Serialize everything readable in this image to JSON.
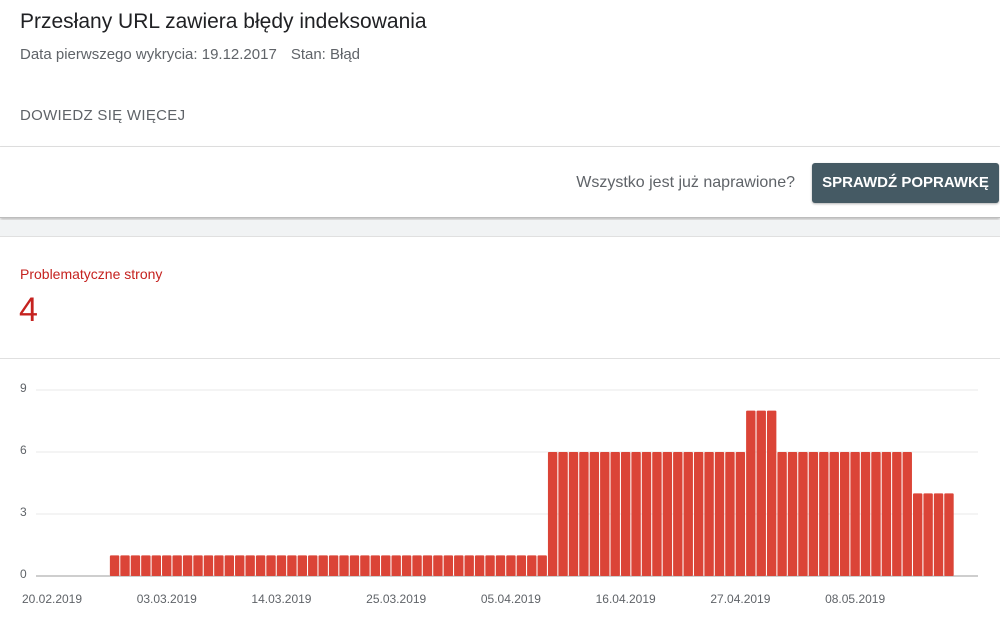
{
  "header": {
    "title": "Przesłany URL zawiera błędy indeksowania",
    "first_detected": "Data pierwszego wykrycia: 19.12.2017",
    "status": "Stan: Błąd",
    "learn_more": "DOWIEDZ SIĘ WIĘCEJ"
  },
  "fix_bar": {
    "question": "Wszystko jest już naprawione?",
    "button": "SPRAWDŹ POPRAWKĘ"
  },
  "summary": {
    "label": "Problematyczne strony",
    "count": "4"
  },
  "chart_data": {
    "type": "bar",
    "color": "#db4437",
    "grid": true,
    "categories": [
      "20.02.2019",
      null,
      null,
      null,
      null,
      null,
      null,
      null,
      null,
      null,
      null,
      "03.03.2019",
      null,
      null,
      null,
      null,
      null,
      null,
      null,
      null,
      null,
      null,
      "14.03.2019",
      null,
      null,
      null,
      null,
      null,
      null,
      null,
      null,
      null,
      null,
      "25.03.2019",
      null,
      null,
      null,
      null,
      null,
      null,
      null,
      null,
      null,
      null,
      "05.04.2019",
      null,
      null,
      null,
      null,
      null,
      null,
      null,
      null,
      null,
      null,
      "16.04.2019",
      null,
      null,
      null,
      null,
      null,
      null,
      null,
      null,
      null,
      null,
      "27.04.2019",
      null,
      null,
      null,
      null,
      null,
      null,
      null,
      null,
      null,
      null,
      "08.05.2019",
      null,
      null,
      null,
      null,
      null,
      null,
      null,
      null,
      null
    ],
    "values": [
      null,
      null,
      null,
      null,
      null,
      null,
      1,
      1,
      1,
      1,
      1,
      1,
      1,
      1,
      1,
      1,
      1,
      1,
      1,
      1,
      1,
      1,
      1,
      1,
      1,
      1,
      1,
      1,
      1,
      1,
      1,
      1,
      1,
      1,
      1,
      1,
      1,
      1,
      1,
      1,
      1,
      1,
      1,
      1,
      1,
      1,
      1,
      1,
      6,
      6,
      6,
      6,
      6,
      6,
      6,
      6,
      6,
      6,
      6,
      6,
      6,
      6,
      6,
      6,
      6,
      6,
      6,
      8,
      8,
      8,
      6,
      6,
      6,
      6,
      6,
      6,
      6,
      6,
      6,
      6,
      6,
      6,
      6,
      4,
      4,
      4,
      4
    ],
    "ylim": [
      0,
      9
    ],
    "yticks": [
      0,
      3,
      6,
      9
    ]
  }
}
